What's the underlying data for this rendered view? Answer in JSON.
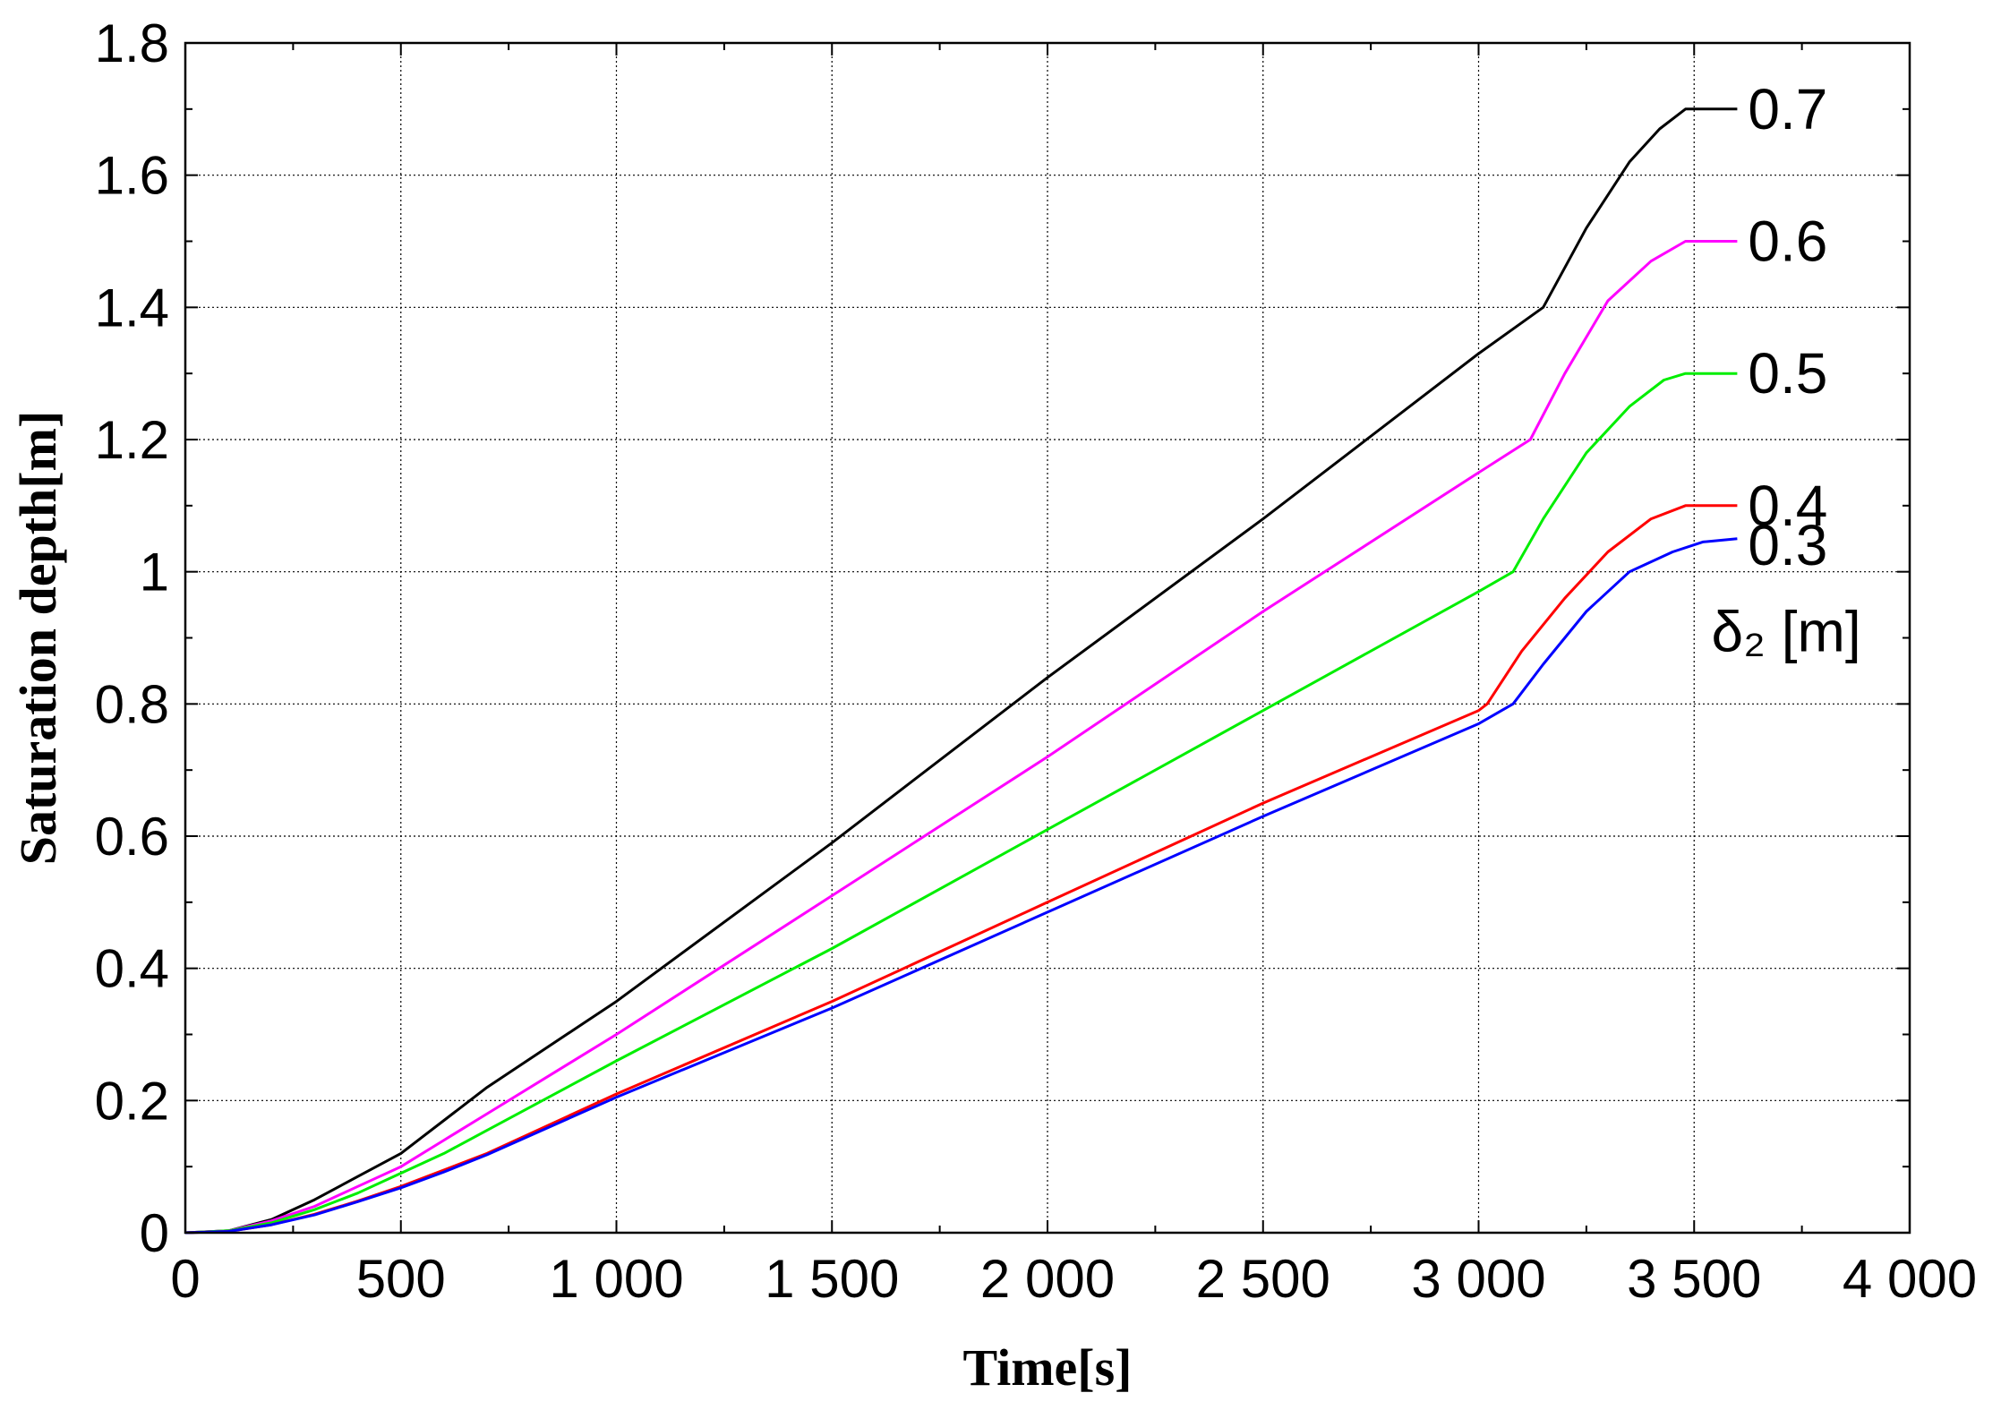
{
  "chart_data": {
    "type": "line",
    "xlabel": "Time[s]",
    "ylabel": "Saturation depth[m]",
    "xlim": [
      0,
      4000
    ],
    "ylim": [
      0,
      1.8
    ],
    "x_ticks": [
      0,
      500,
      1000,
      1500,
      2000,
      2500,
      3000,
      3500,
      4000
    ],
    "x_tick_labels": [
      "0",
      "500",
      "1 000",
      "1 500",
      "2 000",
      "2 500",
      "3 000",
      "3 500",
      "4 000"
    ],
    "y_ticks": [
      0,
      0.2,
      0.4,
      0.6,
      0.8,
      1.0,
      1.2,
      1.4,
      1.6,
      1.8
    ],
    "y_tick_labels": [
      "0",
      "0.2",
      "0.4",
      "0.6",
      "0.8",
      "1",
      "1.2",
      "1.4",
      "1.6",
      "1.8"
    ],
    "grid": true,
    "legend_title": "δ₂ [m]",
    "series": [
      {
        "name": "0.7",
        "color": "#000000",
        "label_at": [
          3600,
          1.7
        ],
        "points": [
          [
            0,
            0
          ],
          [
            100,
            0.003
          ],
          [
            200,
            0.02
          ],
          [
            300,
            0.05
          ],
          [
            400,
            0.085
          ],
          [
            500,
            0.12
          ],
          [
            600,
            0.17
          ],
          [
            700,
            0.22
          ],
          [
            1000,
            0.35
          ],
          [
            1500,
            0.59
          ],
          [
            2000,
            0.84
          ],
          [
            2500,
            1.08
          ],
          [
            3000,
            1.33
          ],
          [
            3150,
            1.4
          ],
          [
            3250,
            1.52
          ],
          [
            3350,
            1.62
          ],
          [
            3420,
            1.67
          ],
          [
            3480,
            1.7
          ],
          [
            3600,
            1.7
          ]
        ]
      },
      {
        "name": "0.6",
        "color": "#ff00ff",
        "label_at": [
          3600,
          1.5
        ],
        "points": [
          [
            0,
            0
          ],
          [
            100,
            0.003
          ],
          [
            200,
            0.018
          ],
          [
            300,
            0.04
          ],
          [
            400,
            0.07
          ],
          [
            500,
            0.1
          ],
          [
            600,
            0.14
          ],
          [
            700,
            0.18
          ],
          [
            1000,
            0.3
          ],
          [
            1500,
            0.51
          ],
          [
            2000,
            0.72
          ],
          [
            2500,
            0.94
          ],
          [
            3000,
            1.15
          ],
          [
            3120,
            1.2
          ],
          [
            3200,
            1.3
          ],
          [
            3300,
            1.41
          ],
          [
            3400,
            1.47
          ],
          [
            3480,
            1.5
          ],
          [
            3600,
            1.5
          ]
        ]
      },
      {
        "name": "0.5",
        "color": "#00ee00",
        "label_at": [
          3600,
          1.3
        ],
        "points": [
          [
            0,
            0
          ],
          [
            100,
            0.003
          ],
          [
            200,
            0.015
          ],
          [
            300,
            0.035
          ],
          [
            400,
            0.06
          ],
          [
            500,
            0.09
          ],
          [
            600,
            0.12
          ],
          [
            700,
            0.155
          ],
          [
            1000,
            0.26
          ],
          [
            1500,
            0.43
          ],
          [
            2000,
            0.61
          ],
          [
            2500,
            0.79
          ],
          [
            3000,
            0.97
          ],
          [
            3080,
            1.0
          ],
          [
            3150,
            1.08
          ],
          [
            3250,
            1.18
          ],
          [
            3350,
            1.25
          ],
          [
            3430,
            1.29
          ],
          [
            3480,
            1.3
          ],
          [
            3600,
            1.3
          ]
        ]
      },
      {
        "name": "0.4",
        "color": "#ff0000",
        "label_at": [
          3600,
          1.1
        ],
        "points": [
          [
            0,
            0
          ],
          [
            100,
            0.002
          ],
          [
            200,
            0.012
          ],
          [
            300,
            0.028
          ],
          [
            400,
            0.048
          ],
          [
            500,
            0.07
          ],
          [
            600,
            0.095
          ],
          [
            700,
            0.12
          ],
          [
            1000,
            0.21
          ],
          [
            1500,
            0.35
          ],
          [
            2000,
            0.5
          ],
          [
            2500,
            0.65
          ],
          [
            3000,
            0.79
          ],
          [
            3020,
            0.8
          ],
          [
            3100,
            0.88
          ],
          [
            3200,
            0.96
          ],
          [
            3300,
            1.03
          ],
          [
            3400,
            1.08
          ],
          [
            3480,
            1.1
          ],
          [
            3600,
            1.1
          ]
        ]
      },
      {
        "name": "0.3",
        "color": "#0000ff",
        "label_at": [
          3600,
          1.04
        ],
        "points": [
          [
            0,
            0
          ],
          [
            100,
            0.002
          ],
          [
            200,
            0.012
          ],
          [
            300,
            0.027
          ],
          [
            400,
            0.047
          ],
          [
            500,
            0.068
          ],
          [
            600,
            0.092
          ],
          [
            700,
            0.118
          ],
          [
            1000,
            0.205
          ],
          [
            1500,
            0.34
          ],
          [
            2000,
            0.485
          ],
          [
            2500,
            0.63
          ],
          [
            3000,
            0.77
          ],
          [
            3080,
            0.8
          ],
          [
            3150,
            0.86
          ],
          [
            3250,
            0.94
          ],
          [
            3350,
            1.0
          ],
          [
            3450,
            1.03
          ],
          [
            3520,
            1.045
          ],
          [
            3600,
            1.05
          ]
        ]
      }
    ]
  }
}
